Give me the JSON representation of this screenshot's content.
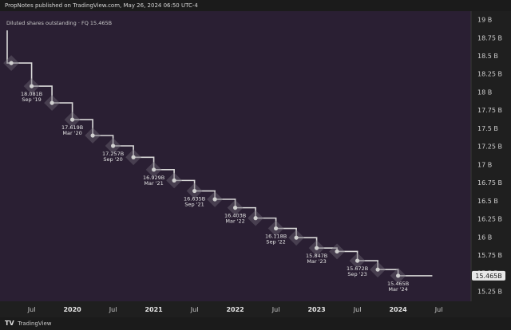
{
  "header": {
    "publisher_line": "PropNotes published on TradingView.com, May 26, 2024 06:50 UTC-4"
  },
  "footer": {
    "brand": "TradingView",
    "logo": "TV"
  },
  "chart_data": {
    "type": "line",
    "style": "step",
    "legend": "Diluted shares outstanding · FQ  15.465B",
    "last_value_label": "15.465B",
    "ylim": [
      15.2,
      19.05
    ],
    "y_ticks": [
      {
        "v": 19.0,
        "label": "19 B"
      },
      {
        "v": 18.75,
        "label": "18.75 B"
      },
      {
        "v": 18.5,
        "label": "18.5 B"
      },
      {
        "v": 18.25,
        "label": "18.25 B"
      },
      {
        "v": 18.0,
        "label": "18 B"
      },
      {
        "v": 17.75,
        "label": "17.75 B"
      },
      {
        "v": 17.5,
        "label": "17.5 B"
      },
      {
        "v": 17.25,
        "label": "17.25 B"
      },
      {
        "v": 17.0,
        "label": "17 B"
      },
      {
        "v": 16.75,
        "label": "16.75 B"
      },
      {
        "v": 16.5,
        "label": "16.5 B"
      },
      {
        "v": 16.25,
        "label": "16.25 B"
      },
      {
        "v": 16.0,
        "label": "16 B"
      },
      {
        "v": 15.75,
        "label": "15.75 B"
      },
      {
        "v": 15.5,
        "label": "15.5 B"
      },
      {
        "v": 15.25,
        "label": "15.25 B"
      }
    ],
    "xlim": [
      2019.2,
      2024.7
    ],
    "x_ticks": [
      {
        "t": 2019.5,
        "label": "Jul",
        "year": false
      },
      {
        "t": 2020.0,
        "label": "2020",
        "year": true
      },
      {
        "t": 2020.5,
        "label": "Jul",
        "year": false
      },
      {
        "t": 2021.0,
        "label": "2021",
        "year": true
      },
      {
        "t": 2021.5,
        "label": "Jul",
        "year": false
      },
      {
        "t": 2022.0,
        "label": "2022",
        "year": true
      },
      {
        "t": 2022.5,
        "label": "Jul",
        "year": false
      },
      {
        "t": 2023.0,
        "label": "2023",
        "year": true
      },
      {
        "t": 2023.5,
        "label": "Jul",
        "year": false
      },
      {
        "t": 2024.0,
        "label": "2024",
        "year": true
      },
      {
        "t": 2024.5,
        "label": "Jul",
        "year": false
      }
    ],
    "start": {
      "t": 2019.2,
      "v": 18.85
    },
    "end_t": 2024.42,
    "points": [
      {
        "t": 2019.25,
        "v": 18.4,
        "label": ""
      },
      {
        "t": 2019.5,
        "v": 18.081,
        "label": "18.081B",
        "date": "Sep '19"
      },
      {
        "t": 2019.75,
        "v": 17.85,
        "label": ""
      },
      {
        "t": 2020.0,
        "v": 17.619,
        "label": "17.619B",
        "date": "Mar '20"
      },
      {
        "t": 2020.25,
        "v": 17.4,
        "label": ""
      },
      {
        "t": 2020.5,
        "v": 17.257,
        "label": "17.257B",
        "date": "Sep '20"
      },
      {
        "t": 2020.75,
        "v": 17.1,
        "label": ""
      },
      {
        "t": 2021.0,
        "v": 16.929,
        "label": "16.929B",
        "date": "Mar '21"
      },
      {
        "t": 2021.25,
        "v": 16.78,
        "label": ""
      },
      {
        "t": 2021.5,
        "v": 16.635,
        "label": "16.635B",
        "date": "Sep '21"
      },
      {
        "t": 2021.75,
        "v": 16.52,
        "label": ""
      },
      {
        "t": 2022.0,
        "v": 16.403,
        "label": "16.403B",
        "date": "Mar '22"
      },
      {
        "t": 2022.25,
        "v": 16.26,
        "label": ""
      },
      {
        "t": 2022.5,
        "v": 16.118,
        "label": "16.118B",
        "date": "Sep '22"
      },
      {
        "t": 2022.75,
        "v": 15.99,
        "label": ""
      },
      {
        "t": 2023.0,
        "v": 15.847,
        "label": "15.847B",
        "date": "Mar '23"
      },
      {
        "t": 2023.25,
        "v": 15.8,
        "label": ""
      },
      {
        "t": 2023.5,
        "v": 15.672,
        "label": "15.672B",
        "date": "Sep '23"
      },
      {
        "t": 2023.75,
        "v": 15.55,
        "label": ""
      },
      {
        "t": 2024.0,
        "v": 15.465,
        "label": "15.465B",
        "date": "Mar '24"
      }
    ]
  }
}
